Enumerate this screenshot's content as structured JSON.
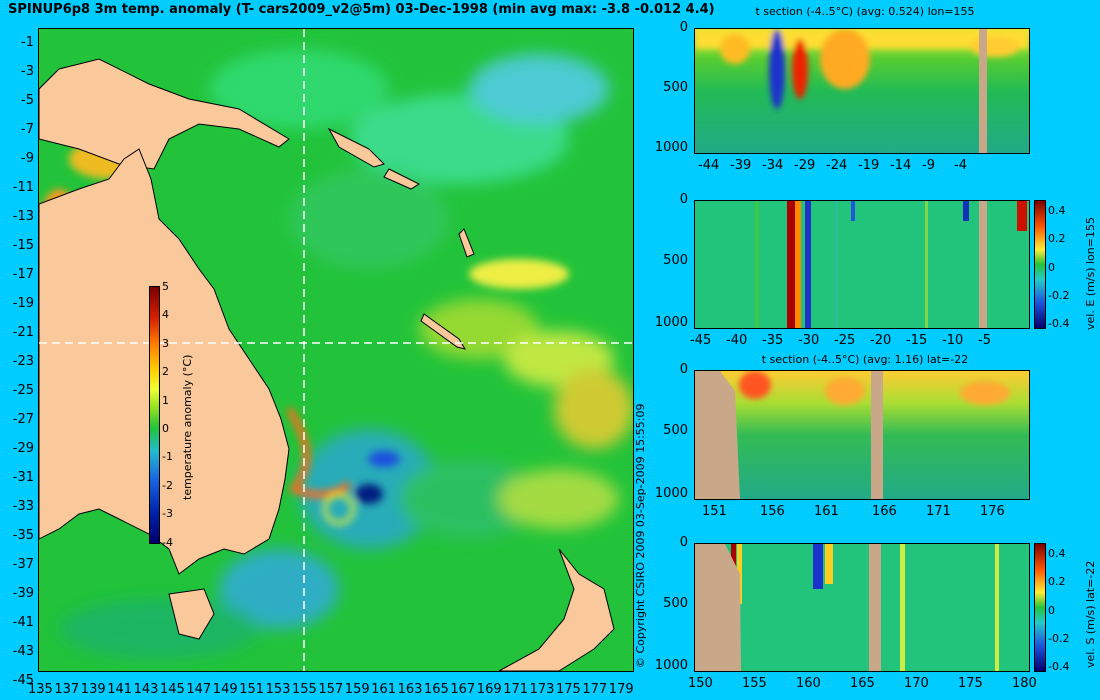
{
  "main_title": "SPINUP6p8 3m temp. anomaly (T- cars2009_v2@5m) 03-Dec-1998 (min avg max: -3.8 -0.012 4.4)",
  "map": {
    "lat_ticks": [
      "-1",
      "-3",
      "-5",
      "-7",
      "-9",
      "-11",
      "-13",
      "-15",
      "-17",
      "-19",
      "-21",
      "-23",
      "-25",
      "-27",
      "-29",
      "-31",
      "-33",
      "-35",
      "-37",
      "-39",
      "-41",
      "-43",
      "-45"
    ],
    "lon_ticks": [
      "135",
      "137",
      "139",
      "141",
      "143",
      "145",
      "147",
      "149",
      "151",
      "153",
      "155",
      "157",
      "159",
      "161",
      "163",
      "165",
      "167",
      "169",
      "171",
      "173",
      "175",
      "177",
      "179"
    ],
    "colorbar": {
      "label": "temperature anomaly (°C)",
      "ticks": [
        "5",
        "4",
        "3",
        "2",
        "1",
        "0",
        "-1",
        "-2",
        "-3",
        "-4"
      ],
      "range": [
        -4,
        5
      ]
    },
    "crosshair": {
      "lon": 155,
      "lat": -22
    },
    "colors": {
      "land": "#f9c89b",
      "sea_base": "#22c33a"
    }
  },
  "copyright": "© Copyright CSIRO 2009   03-Sep-2009 15:55:09",
  "sections": [
    {
      "title": "t section (-4..5°C) (avg: 0.524) lon=155",
      "depth_ticks": [
        "0",
        "500",
        "1000"
      ],
      "x_ticks": [
        "-44",
        "-39",
        "-34",
        "-29",
        "-24",
        "-19",
        "-14",
        "-9",
        "-4"
      ],
      "colorbar": null
    },
    {
      "title": "",
      "depth_ticks": [
        "0",
        "500",
        "1000"
      ],
      "x_ticks": [
        "-45",
        "-40",
        "-35",
        "-30",
        "-25",
        "-20",
        "-15",
        "-10",
        "-5"
      ],
      "colorbar": {
        "label": "vel. E (m/s) lon=155",
        "ticks": [
          "0.4",
          "0.2",
          "0",
          "-0.2",
          "-0.4"
        ]
      }
    },
    {
      "title": "t section (-4..5°C) (avg: 1.16) lat=-22",
      "depth_ticks": [
        "0",
        "500",
        "1000"
      ],
      "x_ticks": [
        "151",
        "156",
        "161",
        "166",
        "171",
        "176"
      ],
      "colorbar": null
    },
    {
      "title": "",
      "depth_ticks": [
        "0",
        "500",
        "1000"
      ],
      "x_ticks": [
        "150",
        "155",
        "160",
        "165",
        "170",
        "175",
        "180"
      ],
      "colorbar": {
        "label": "vel. S (m/s) lat=-22",
        "ticks": [
          "0.4",
          "0.2",
          "0",
          "-0.2",
          "-0.4"
        ]
      }
    }
  ]
}
